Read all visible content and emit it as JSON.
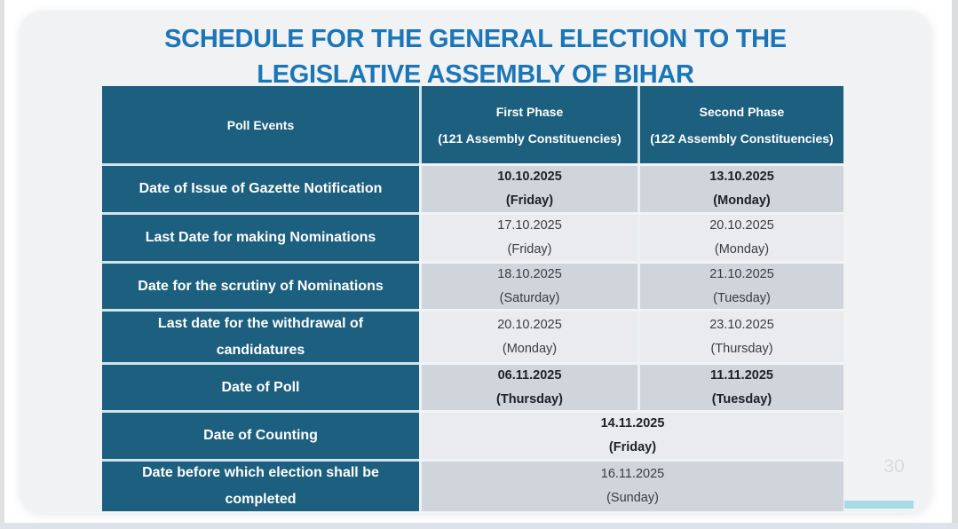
{
  "title": {
    "line1": "SCHEDULE FOR THE GENERAL ELECTION TO THE",
    "line2": "LEGISLATIVE ASSEMBLY OF BIHAR"
  },
  "table": {
    "header": {
      "poll_events": "Poll Events",
      "first_phase": {
        "line1": "First Phase",
        "line2": "(121 Assembly Constituencies)"
      },
      "second_phase": {
        "line1": "Second Phase",
        "line2": "(122 Assembly Constituencies)"
      }
    },
    "rows": [
      {
        "event": "Date of Issue of Gazette Notification",
        "first": {
          "date": "10.10.2025",
          "day": "(Friday)"
        },
        "second": {
          "date": "13.10.2025",
          "day": "(Monday)"
        }
      },
      {
        "event": "Last Date for making Nominations",
        "first": {
          "date": "17.10.2025",
          "day": "(Friday)"
        },
        "second": {
          "date": "20.10.2025",
          "day": "(Monday)"
        }
      },
      {
        "event": "Date for the scrutiny of Nominations",
        "first": {
          "date": "18.10.2025",
          "day": "(Saturday)"
        },
        "second": {
          "date": "21.10.2025",
          "day": "(Tuesday)"
        }
      },
      {
        "event": "Last date for the withdrawal of candidatures",
        "first": {
          "date": "20.10.2025",
          "day": "(Monday)"
        },
        "second": {
          "date": "23.10.2025",
          "day": "(Thursday)"
        }
      },
      {
        "event": "Date of Poll",
        "first": {
          "date": "06.11.2025",
          "day": "(Thursday)"
        },
        "second": {
          "date": "11.11.2025",
          "day": "(Tuesday)"
        }
      },
      {
        "event": "Date of Counting",
        "merged": {
          "date": "14.11.2025",
          "day": "(Friday)"
        }
      },
      {
        "event": "Date before which election shall be completed",
        "merged": {
          "date": "16.11.2025",
          "day": "(Sunday)"
        }
      }
    ]
  },
  "page_number": "30",
  "colors": {
    "title_blue": "#1b76b8",
    "header_teal": "#1d5f7e",
    "row_gray": "#d0d4db",
    "row_light": "#e9ebee",
    "accent_cyan": "#a8dbe7"
  }
}
